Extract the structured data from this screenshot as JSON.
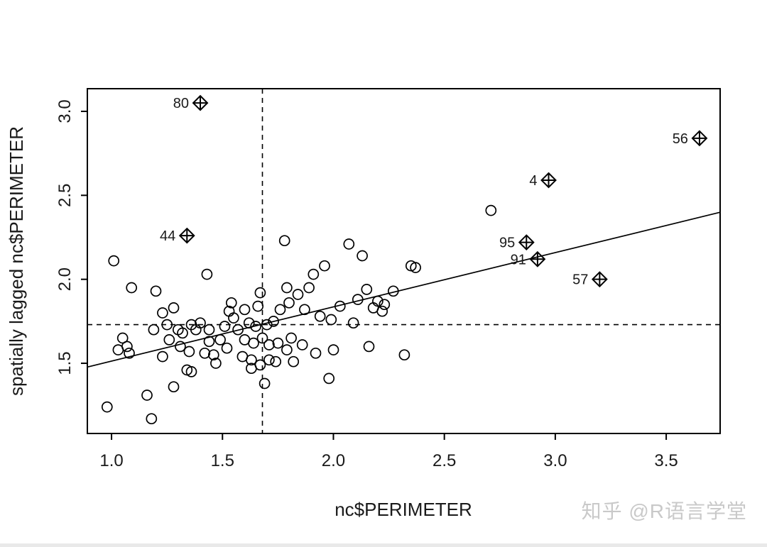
{
  "watermark": "知乎 @R语言学堂",
  "chart_data": {
    "type": "scatter",
    "title": "",
    "xlabel": "nc$PERIMETER",
    "ylabel": "spatially lagged nc$PERIMETER",
    "xlim": [
      0.891,
      3.743
    ],
    "ylim": [
      1.082,
      3.135
    ],
    "x_ticks": [
      1.0,
      1.5,
      2.0,
      2.5,
      3.0,
      3.5
    ],
    "y_ticks": [
      1.5,
      2.0,
      2.5,
      3.0
    ],
    "grid": false,
    "legend": "none",
    "regression_line": {
      "slope": 0.323,
      "intercept": 1.19
    },
    "mean_x_line": 1.68,
    "mean_y_line": 1.73,
    "points": [
      [
        1.01,
        2.11
      ],
      [
        1.09,
        1.95
      ],
      [
        0.98,
        1.24
      ],
      [
        1.16,
        1.31
      ],
      [
        1.18,
        1.17
      ],
      [
        1.03,
        1.58
      ],
      [
        1.05,
        1.65
      ],
      [
        1.07,
        1.6
      ],
      [
        1.08,
        1.56
      ],
      [
        1.2,
        1.93
      ],
      [
        1.23,
        1.8
      ],
      [
        1.25,
        1.73
      ],
      [
        1.19,
        1.7
      ],
      [
        1.26,
        1.64
      ],
      [
        1.23,
        1.54
      ],
      [
        1.28,
        1.83
      ],
      [
        1.3,
        1.7
      ],
      [
        1.31,
        1.6
      ],
      [
        1.28,
        1.36
      ],
      [
        1.34,
        1.46
      ],
      [
        1.36,
        1.45
      ],
      [
        1.32,
        1.68
      ],
      [
        1.36,
        1.73
      ],
      [
        1.38,
        1.7
      ],
      [
        1.4,
        1.74
      ],
      [
        1.43,
        2.03
      ],
      [
        1.44,
        1.7
      ],
      [
        1.44,
        1.63
      ],
      [
        1.46,
        1.55
      ],
      [
        1.47,
        1.5
      ],
      [
        1.49,
        1.64
      ],
      [
        1.51,
        1.72
      ],
      [
        1.52,
        1.59
      ],
      [
        1.53,
        1.81
      ],
      [
        1.54,
        1.86
      ],
      [
        1.55,
        1.77
      ],
      [
        1.57,
        1.7
      ],
      [
        1.59,
        1.54
      ],
      [
        1.6,
        1.64
      ],
      [
        1.6,
        1.82
      ],
      [
        1.62,
        1.74
      ],
      [
        1.63,
        1.52
      ],
      [
        1.64,
        1.62
      ],
      [
        1.65,
        1.72
      ],
      [
        1.66,
        1.84
      ],
      [
        1.67,
        1.92
      ],
      [
        1.68,
        1.65
      ],
      [
        1.69,
        1.38
      ],
      [
        1.7,
        1.73
      ],
      [
        1.71,
        1.61
      ],
      [
        1.71,
        1.52
      ],
      [
        1.73,
        1.75
      ],
      [
        1.74,
        1.51
      ],
      [
        1.75,
        1.62
      ],
      [
        1.76,
        1.82
      ],
      [
        1.78,
        2.23
      ],
      [
        1.79,
        1.95
      ],
      [
        1.79,
        1.58
      ],
      [
        1.8,
        1.86
      ],
      [
        1.81,
        1.65
      ],
      [
        1.82,
        1.51
      ],
      [
        1.84,
        1.91
      ],
      [
        1.86,
        1.61
      ],
      [
        1.87,
        1.82
      ],
      [
        1.89,
        1.95
      ],
      [
        1.91,
        2.03
      ],
      [
        1.92,
        1.56
      ],
      [
        1.94,
        1.78
      ],
      [
        1.96,
        2.08
      ],
      [
        1.99,
        1.76
      ],
      [
        2.0,
        1.58
      ],
      [
        1.98,
        1.41
      ],
      [
        2.03,
        1.84
      ],
      [
        2.07,
        2.21
      ],
      [
        2.09,
        1.74
      ],
      [
        2.11,
        1.88
      ],
      [
        2.13,
        2.14
      ],
      [
        2.15,
        1.94
      ],
      [
        2.16,
        1.6
      ],
      [
        2.18,
        1.83
      ],
      [
        2.2,
        1.87
      ],
      [
        2.22,
        1.81
      ],
      [
        2.23,
        1.85
      ],
      [
        2.27,
        1.93
      ],
      [
        2.32,
        1.55
      ],
      [
        2.35,
        2.08
      ],
      [
        2.37,
        2.07
      ],
      [
        2.71,
        2.41
      ],
      [
        1.63,
        1.47
      ],
      [
        1.67,
        1.49
      ],
      [
        1.35,
        1.57
      ],
      [
        1.42,
        1.56
      ]
    ],
    "influential_points": [
      {
        "label": "80",
        "x": 1.4,
        "y": 3.05
      },
      {
        "label": "44",
        "x": 1.34,
        "y": 2.26
      },
      {
        "label": "4",
        "x": 2.97,
        "y": 2.59
      },
      {
        "label": "95",
        "x": 2.87,
        "y": 2.22
      },
      {
        "label": "91",
        "x": 2.92,
        "y": 2.12
      },
      {
        "label": "57",
        "x": 3.2,
        "y": 2.0
      },
      {
        "label": "56",
        "x": 3.65,
        "y": 2.84
      }
    ]
  }
}
